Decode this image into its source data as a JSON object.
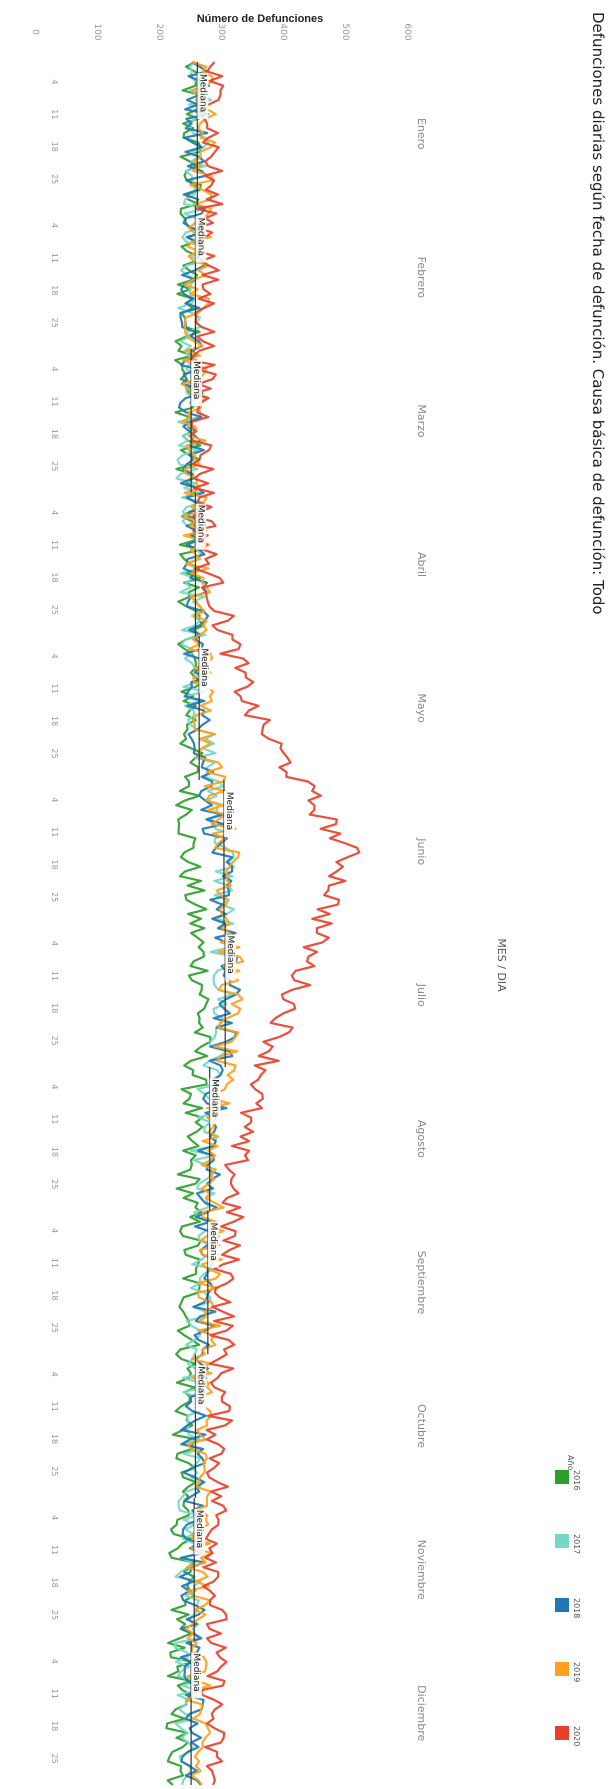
{
  "chart_data": {
    "type": "line",
    "title": "Defunciones diarias según fecha de defunción. Causa básica de defunción: Todo",
    "ylabel": "Número de Defunciones",
    "xlabel": "MES / DIA",
    "y_ticks": [
      "0",
      "100",
      "200",
      "300",
      "400",
      "500",
      "600"
    ],
    "ylim": [
      0,
      600
    ],
    "months": [
      "Enero",
      "Febrero",
      "Marzo",
      "Abril",
      "Mayo",
      "Junio",
      "Julio",
      "Agosto",
      "Septiembre",
      "Octubre",
      "Noviembre",
      "Diciembre"
    ],
    "day_ticks": [
      "4",
      "11",
      "18",
      "25"
    ],
    "median_label": "Mediana",
    "median_by_month": [
      265,
      262,
      255,
      262,
      268,
      308,
      310,
      285,
      282,
      262,
      260,
      255
    ],
    "orientation": "rotated-90-clockwise",
    "grid": false,
    "legend": {
      "title": "Año",
      "position": "bottom-right"
    },
    "series": [
      {
        "name": "2016",
        "color": "#2ca02c",
        "monthly_level": [
          255,
          250,
          250,
          255,
          255,
          250,
          275,
          250,
          255,
          245,
          240,
          235
        ]
      },
      {
        "name": "2017",
        "color": "#76d7c4",
        "monthly_level": [
          270,
          255,
          250,
          255,
          265,
          310,
          305,
          275,
          270,
          255,
          250,
          250
        ]
      },
      {
        "name": "2018",
        "color": "#1f77b4",
        "monthly_level": [
          265,
          260,
          255,
          262,
          265,
          300,
          315,
          285,
          280,
          260,
          258,
          255
        ]
      },
      {
        "name": "2019",
        "color": "#ff9f1a",
        "monthly_level": [
          275,
          265,
          260,
          265,
          275,
          315,
          320,
          290,
          285,
          270,
          268,
          265
        ]
      },
      {
        "name": "2020",
        "color": "#e8402a",
        "monthly_level": [
          290,
          280,
          272,
          280,
          350,
          510,
          420,
          330,
          310,
          300,
          295,
          290
        ]
      }
    ]
  }
}
